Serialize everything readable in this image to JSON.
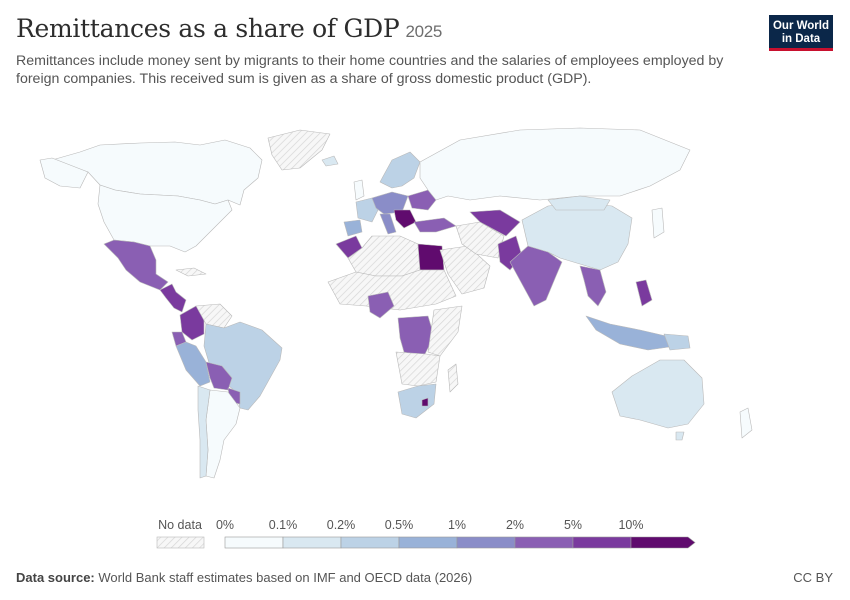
{
  "header": {
    "title": "Remittances as a share of GDP",
    "year": "2025",
    "subtitle": "Remittances include money sent by migrants to their home countries and the salaries of employees employed by foreign companies. This received sum is given as a share of gross domestic product (GDP)."
  },
  "logo": {
    "line1": "Our World",
    "line2": "in Data"
  },
  "legend": {
    "no_data_label": "No data",
    "bins": [
      {
        "label": "0%",
        "color": "#f6fbfd"
      },
      {
        "label": "0.1%",
        "color": "#d9e8f1"
      },
      {
        "label": "0.2%",
        "color": "#bcd2e6"
      },
      {
        "label": "0.5%",
        "color": "#99b2d8"
      },
      {
        "label": "1%",
        "color": "#8a8dc8"
      },
      {
        "label": "2%",
        "color": "#8a5fb3"
      },
      {
        "label": "5%",
        "color": "#7a3a9e"
      },
      {
        "label": "10%",
        "color": "#600b6e"
      }
    ]
  },
  "footer": {
    "source_label": "Data source:",
    "source_text": "World Bank staff estimates based on IMF and OECD data (2026)",
    "license": "CC BY"
  },
  "colors": {
    "no_data_fill": "#f7f7f7",
    "no_data_hatch": "#d6d6d6",
    "border": "#b9b9b9"
  }
}
